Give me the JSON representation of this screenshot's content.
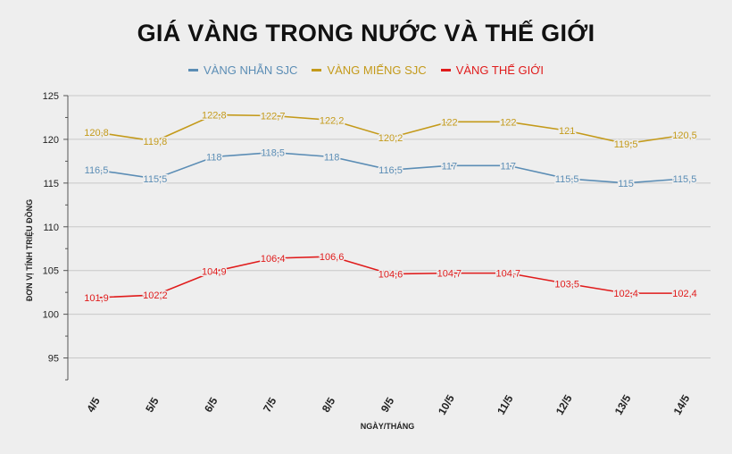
{
  "chart_data": {
    "type": "line",
    "title": "GIÁ VÀNG TRONG NƯỚC VÀ THẾ GIỚI",
    "xlabel": "NGÀY/THÁNG",
    "ylabel": "ĐƠN VỊ TÍNH TRIỆU ĐỒNG",
    "categories": [
      "4/5",
      "5/5",
      "6/5",
      "7/5",
      "8/5",
      "9/5",
      "10/5",
      "11/5",
      "12/5",
      "13/5",
      "14/5"
    ],
    "ylim": [
      92.5,
      125
    ],
    "yticks": [
      95,
      100,
      105,
      110,
      115,
      120,
      125
    ],
    "grid": true,
    "legend_position": "top",
    "series": [
      {
        "name": "VÀNG NHẪN SJC",
        "color": "#5b8db5",
        "values": [
          116.5,
          115.5,
          118,
          118.5,
          118,
          116.5,
          117,
          117,
          115.5,
          115,
          115.5
        ],
        "labels": [
          "116,5",
          "115,5",
          "118",
          "118,5",
          "118",
          "116,5",
          "117",
          "117",
          "115,5",
          "115",
          "115,5"
        ]
      },
      {
        "name": "VÀNG MIẾNG SJC",
        "color": "#c49a1a",
        "values": [
          120.8,
          119.8,
          122.8,
          122.7,
          122.2,
          120.2,
          122,
          122,
          121,
          119.5,
          120.5
        ],
        "labels": [
          "120,8",
          "119,8",
          "122,8",
          "122,7",
          "122,2",
          "120,2",
          "122",
          "122",
          "121",
          "119,5",
          "120,5"
        ]
      },
      {
        "name": "VÀNG THẾ GIỚI",
        "color": "#e01b1b",
        "values": [
          101.9,
          102.2,
          104.9,
          106.4,
          106.6,
          104.6,
          104.7,
          104.7,
          103.5,
          102.4,
          102.4
        ],
        "labels": [
          "101,9",
          "102,2",
          "104,9",
          "106,4",
          "106,6",
          "104,6",
          "104,7",
          "104,7",
          "103,5",
          "102,4",
          "102,4"
        ]
      }
    ]
  }
}
